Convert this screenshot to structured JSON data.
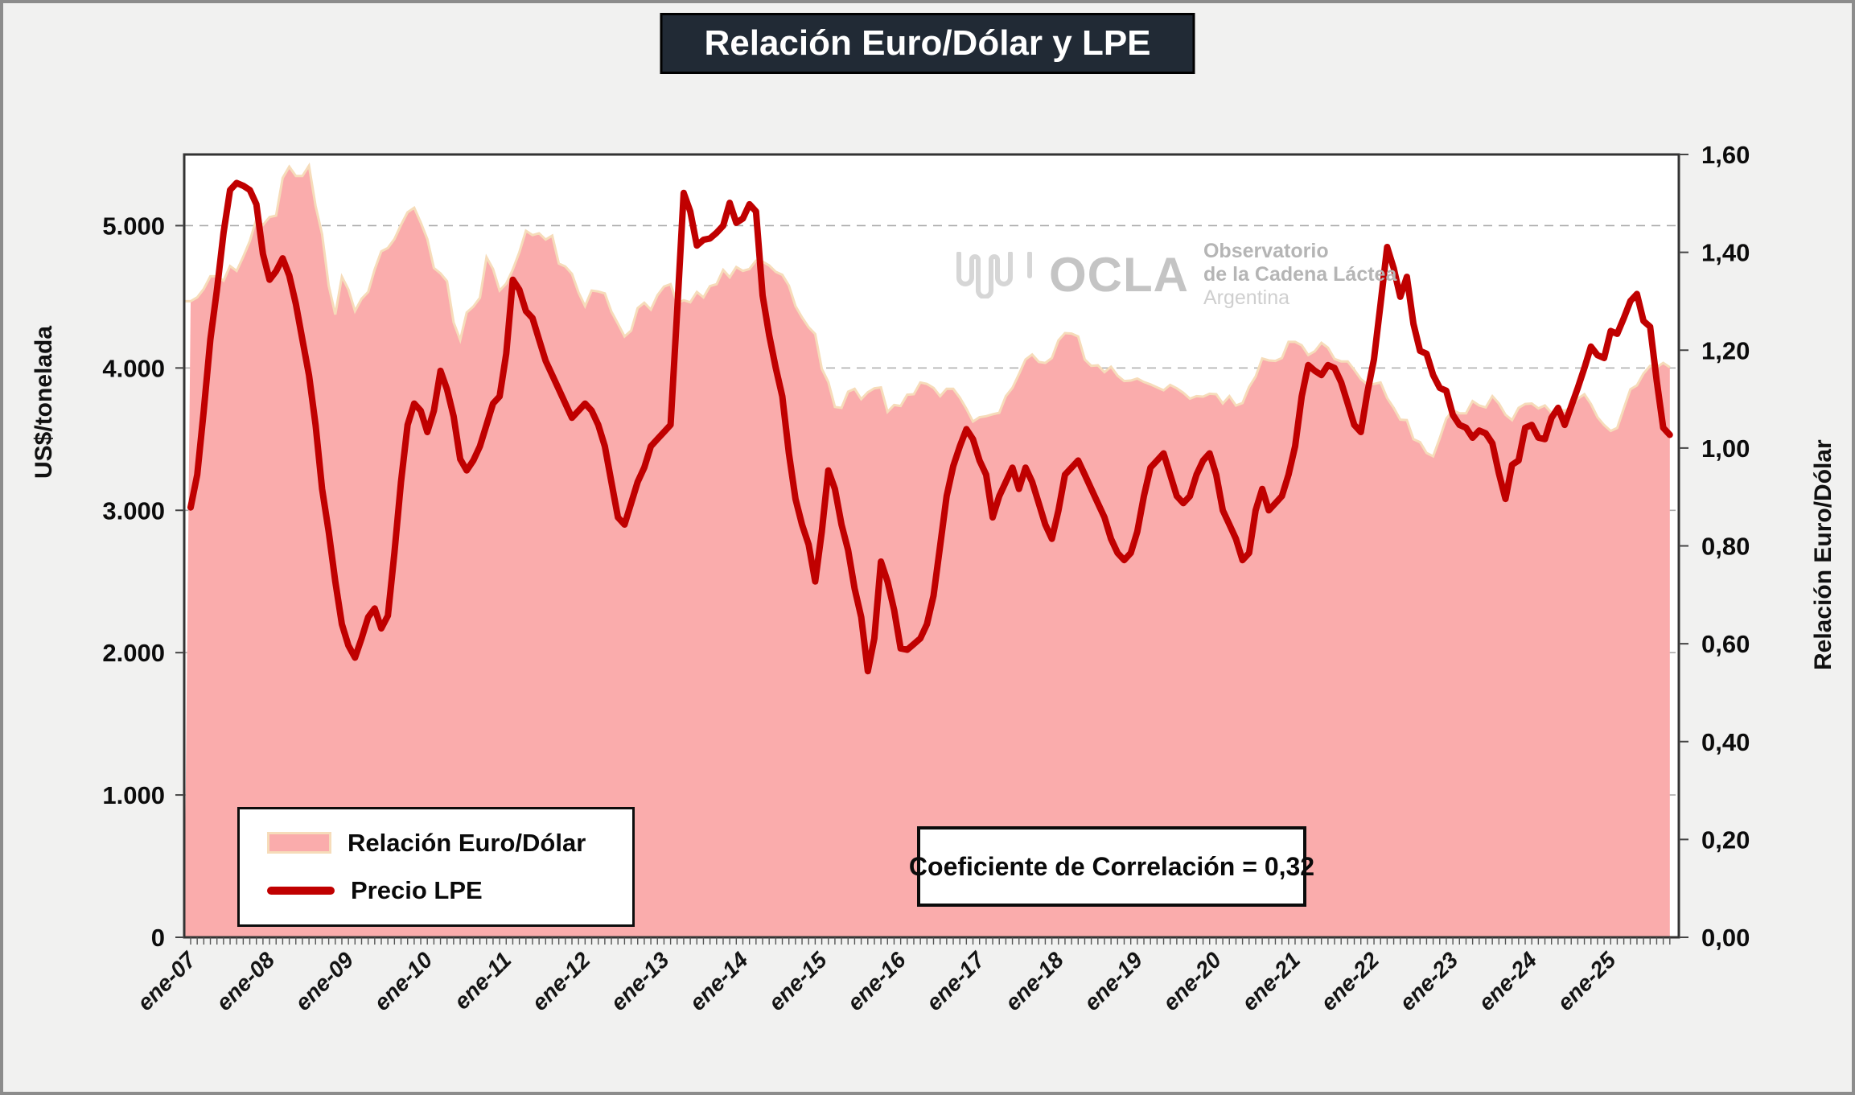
{
  "title": "Relación Euro/Dólar y LPE",
  "annotation": "Coeficiente de Correlación = 0,32",
  "watermark": {
    "acronym": "OCLA",
    "line1": "Observatorio",
    "line2": "de la Cadena Láctea",
    "line3": "Argentina"
  },
  "legend": [
    {
      "label": "Relación Euro/Dólar",
      "type": "area"
    },
    {
      "label": "Precio LPE",
      "type": "line"
    }
  ],
  "axes": {
    "left": {
      "title": "US$/tonelada",
      "tick_labels": [
        "0",
        "1.000",
        "2.000",
        "3.000",
        "4.000",
        "5.000"
      ],
      "tick_values": [
        0,
        1000,
        2000,
        3000,
        4000,
        5000
      ],
      "max": 5500
    },
    "right": {
      "title": "Relación Euro/Dólar",
      "tick_labels": [
        "0,00",
        "0,20",
        "0,40",
        "0,60",
        "0,80",
        "1,00",
        "1,20",
        "1,40",
        "1,60"
      ],
      "tick_values": [
        0,
        0.2,
        0.4,
        0.6,
        0.8,
        1.0,
        1.2,
        1.4,
        1.6
      ],
      "max": 1.6
    },
    "x": {
      "tick_labels": [
        "ene-07",
        "ene-08",
        "ene-09",
        "ene-10",
        "ene-11",
        "ene-12",
        "ene-13",
        "ene-14",
        "ene-15",
        "ene-16",
        "ene-17",
        "ene-18",
        "ene-19",
        "ene-20",
        "ene-21",
        "ene-22",
        "ene-23",
        "ene-24",
        "ene-25"
      ]
    }
  },
  "colors": {
    "area_fill": "#FAACAC",
    "area_edge": "#F6DCBA",
    "line": "#C00000",
    "grid": "#ababab",
    "plot_border": "#333333",
    "title_bg": "#212A35",
    "background": "#f1f1f0"
  },
  "chart_data": {
    "type": "combo",
    "frequency": "monthly",
    "x_start": "ene-07",
    "x_end": "oct-25",
    "grid": "dashed-horizontal",
    "legend_position": "bottom-left-inside",
    "series": [
      {
        "name": "Relación Euro/Dólar",
        "type": "area",
        "axis": "right",
        "values": [
          1.3,
          1.308,
          1.325,
          1.351,
          1.351,
          1.342,
          1.372,
          1.362,
          1.391,
          1.423,
          1.468,
          1.456,
          1.472,
          1.475,
          1.552,
          1.575,
          1.556,
          1.556,
          1.577,
          1.495,
          1.437,
          1.332,
          1.273,
          1.35,
          1.324,
          1.28,
          1.305,
          1.319,
          1.365,
          1.402,
          1.409,
          1.427,
          1.456,
          1.482,
          1.491,
          1.461,
          1.427,
          1.368,
          1.357,
          1.341,
          1.257,
          1.221,
          1.277,
          1.289,
          1.307,
          1.39,
          1.366,
          1.322,
          1.336,
          1.365,
          1.4,
          1.444,
          1.435,
          1.439,
          1.426,
          1.434,
          1.377,
          1.371,
          1.356,
          1.318,
          1.29,
          1.322,
          1.32,
          1.316,
          1.279,
          1.254,
          1.228,
          1.24,
          1.286,
          1.297,
          1.283,
          1.312,
          1.33,
          1.335,
          1.296,
          1.302,
          1.298,
          1.319,
          1.308,
          1.331,
          1.335,
          1.364,
          1.349,
          1.37,
          1.362,
          1.366,
          1.383,
          1.381,
          1.373,
          1.36,
          1.354,
          1.332,
          1.29,
          1.267,
          1.247,
          1.233,
          1.162,
          1.135,
          1.084,
          1.082,
          1.115,
          1.121,
          1.1,
          1.114,
          1.122,
          1.124,
          1.074,
          1.088,
          1.086,
          1.109,
          1.11,
          1.134,
          1.131,
          1.123,
          1.106,
          1.121,
          1.121,
          1.103,
          1.08,
          1.054,
          1.063,
          1.065,
          1.069,
          1.072,
          1.106,
          1.123,
          1.151,
          1.181,
          1.191,
          1.176,
          1.174,
          1.184,
          1.22,
          1.235,
          1.234,
          1.228,
          1.181,
          1.168,
          1.169,
          1.155,
          1.166,
          1.148,
          1.137,
          1.138,
          1.142,
          1.135,
          1.13,
          1.124,
          1.118,
          1.129,
          1.122,
          1.113,
          1.101,
          1.106,
          1.105,
          1.111,
          1.11,
          1.091,
          1.106,
          1.087,
          1.092,
          1.125,
          1.146,
          1.183,
          1.179,
          1.178,
          1.184,
          1.217,
          1.217,
          1.21,
          1.19,
          1.198,
          1.215,
          1.205,
          1.182,
          1.177,
          1.177,
          1.16,
          1.141,
          1.13,
          1.131,
          1.134,
          1.102,
          1.082,
          1.058,
          1.057,
          1.018,
          1.012,
          0.99,
          0.983,
          1.02,
          1.06,
          1.077,
          1.071,
          1.071,
          1.096,
          1.087,
          1.083,
          1.106,
          1.091,
          1.068,
          1.057,
          1.082,
          1.09,
          1.091,
          1.081,
          1.087,
          1.072,
          1.081,
          1.076,
          1.084,
          1.101,
          1.11,
          1.09,
          1.063,
          1.047,
          1.035,
          1.041,
          1.081,
          1.12,
          1.128,
          1.152,
          1.168,
          1.165,
          1.174,
          1.165
        ]
      },
      {
        "name": "Precio LPE",
        "type": "line",
        "axis": "left",
        "values": [
          3020,
          3250,
          3700,
          4200,
          4550,
          4950,
          5250,
          5300,
          5280,
          5250,
          5150,
          4800,
          4620,
          4680,
          4770,
          4650,
          4450,
          4200,
          3950,
          3600,
          3150,
          2850,
          2500,
          2200,
          2050,
          1965,
          2100,
          2250,
          2310,
          2170,
          2260,
          2700,
          3200,
          3600,
          3750,
          3700,
          3550,
          3700,
          3980,
          3850,
          3660,
          3360,
          3280,
          3350,
          3450,
          3600,
          3750,
          3800,
          4100,
          4620,
          4550,
          4400,
          4350,
          4200,
          4050,
          3950,
          3850,
          3750,
          3650,
          3700,
          3750,
          3700,
          3600,
          3450,
          3200,
          2950,
          2900,
          3050,
          3200,
          3300,
          3450,
          3500,
          3550,
          3600,
          4400,
          5230,
          5100,
          4860,
          4900,
          4910,
          4950,
          5000,
          5160,
          5020,
          5050,
          5150,
          5100,
          4510,
          4230,
          4000,
          3800,
          3400,
          3080,
          2900,
          2760,
          2500,
          2850,
          3280,
          3150,
          2900,
          2720,
          2450,
          2250,
          1870,
          2100,
          2640,
          2500,
          2300,
          2030,
          2020,
          2060,
          2100,
          2200,
          2400,
          2750,
          3100,
          3310,
          3450,
          3570,
          3500,
          3350,
          3250,
          2950,
          3100,
          3200,
          3300,
          3150,
          3300,
          3200,
          3050,
          2900,
          2800,
          3000,
          3250,
          3300,
          3350,
          3250,
          3150,
          3050,
          2950,
          2800,
          2700,
          2650,
          2700,
          2850,
          3100,
          3300,
          3350,
          3400,
          3250,
          3100,
          3050,
          3100,
          3250,
          3350,
          3400,
          3250,
          3000,
          2900,
          2800,
          2650,
          2700,
          3000,
          3150,
          3000,
          3050,
          3100,
          3250,
          3450,
          3800,
          4020,
          3980,
          3950,
          4020,
          4000,
          3900,
          3750,
          3600,
          3550,
          3830,
          4060,
          4450,
          4850,
          4700,
          4500,
          4640,
          4310,
          4120,
          4100,
          3950,
          3860,
          3840,
          3670,
          3600,
          3580,
          3510,
          3560,
          3540,
          3470,
          3260,
          3080,
          3320,
          3350,
          3580,
          3600,
          3510,
          3500,
          3650,
          3720,
          3600,
          3730,
          3860,
          4000,
          4150,
          4090,
          4070,
          4260,
          4240,
          4350,
          4470,
          4520,
          4330,
          4290,
          3910,
          3580,
          3530
        ]
      }
    ]
  }
}
